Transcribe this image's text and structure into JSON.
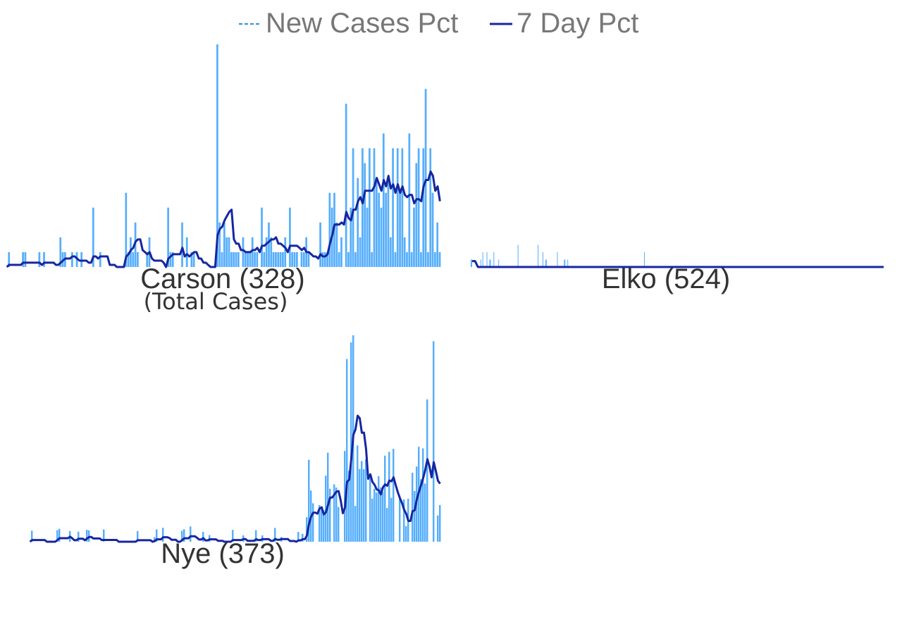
{
  "legend": {
    "new_cases_label": "New Cases Pct",
    "seven_day_label": "7 Day Pct"
  },
  "colors": {
    "bar": "#56aefc",
    "line": "#1626a0",
    "legend_dash": "#2f8fe0",
    "label": "#333333",
    "legend_text": "#777777"
  },
  "chart_data": [
    {
      "type": "bar",
      "label": "Carson (328)",
      "sublabel": "(Total Cases)",
      "ylim": [
        0,
        15
      ],
      "bar_values": [
        0,
        1,
        0,
        0,
        0,
        0,
        0,
        1,
        1,
        0,
        0,
        0,
        0,
        0,
        1,
        0,
        1,
        0,
        0,
        0,
        0,
        0,
        0,
        2,
        1,
        1,
        0,
        0,
        1,
        0,
        1,
        0,
        1,
        0,
        0,
        0,
        0,
        4,
        0,
        0,
        1,
        0,
        0,
        0,
        0,
        0,
        0,
        0,
        0,
        0,
        0,
        5,
        1,
        2,
        1,
        3,
        1,
        0,
        0,
        0,
        1,
        2,
        0,
        0,
        0,
        0,
        0,
        0,
        0,
        4,
        1,
        1,
        0,
        0,
        0,
        3,
        0,
        2,
        0,
        1,
        1,
        0,
        0,
        0,
        0,
        0,
        0,
        0,
        0,
        0,
        15,
        3,
        1,
        3,
        2,
        2,
        1,
        1,
        1,
        1,
        0,
        2,
        1,
        1,
        1,
        2,
        1,
        1,
        0,
        4,
        1,
        2,
        3,
        2,
        1,
        1,
        1,
        1,
        1,
        2,
        0,
        4,
        1,
        1,
        1,
        0,
        1,
        1,
        2,
        1,
        0,
        0,
        0,
        0,
        3,
        1,
        1,
        1,
        5,
        4,
        5,
        3,
        1,
        2,
        0,
        11,
        1,
        4,
        8,
        1,
        6,
        2,
        8,
        7,
        4,
        8,
        1,
        8,
        6,
        5,
        4,
        9,
        5,
        6,
        2,
        8,
        1,
        8,
        5,
        8,
        2,
        1,
        9,
        1,
        4,
        7,
        8,
        1,
        8,
        12,
        1,
        8,
        5,
        1,
        3,
        1
      ],
      "avg_values": [
        1,
        0,
        0,
        0,
        0,
        0,
        0,
        0,
        0,
        0,
        0,
        0,
        0,
        0,
        0,
        0,
        0,
        0,
        0,
        0,
        0,
        0,
        0,
        0,
        0,
        0,
        0,
        0,
        0,
        0,
        0,
        0,
        0,
        0,
        0,
        0,
        1,
        1,
        0,
        0,
        1,
        0,
        0,
        0,
        1,
        1,
        1,
        1,
        1,
        1,
        1,
        1,
        0,
        0,
        0,
        0,
        0,
        0,
        0,
        0,
        0,
        0,
        1,
        1,
        1,
        1,
        2,
        2,
        1,
        2,
        2,
        1,
        1,
        1,
        1,
        1,
        1,
        1,
        0,
        0,
        0,
        0,
        0,
        0,
        1,
        1,
        0,
        0,
        0,
        1,
        1,
        1,
        1,
        1,
        1,
        1,
        1,
        1,
        2,
        2,
        2,
        2,
        1,
        1,
        1,
        1,
        1,
        1,
        1,
        1,
        1,
        1,
        1,
        1,
        1,
        1,
        1,
        1,
        1,
        2,
        1,
        1,
        1,
        1,
        2,
        2,
        2,
        1,
        1,
        1,
        1,
        1,
        1,
        1,
        1,
        1,
        1,
        1,
        1,
        1,
        1,
        1,
        1,
        1,
        1,
        1,
        2,
        2,
        2,
        3,
        3,
        3,
        2,
        3,
        3,
        3,
        3,
        4,
        4,
        4,
        5,
        4,
        4,
        5,
        4,
        5,
        6,
        6,
        5,
        5,
        5,
        5,
        5,
        4,
        4,
        5,
        4,
        4,
        4,
        4,
        4,
        4,
        4,
        5,
        5,
        5,
        5,
        5,
        5,
        5,
        5,
        5,
        5,
        5,
        3,
        3
      ]
    },
    {
      "type": "bar",
      "label": "Elko (524)",
      "ylim": [
        0,
        15
      ],
      "bar_values": [
        0.5,
        0.5,
        0,
        0,
        0,
        0,
        0,
        0,
        0,
        0,
        0,
        0,
        0,
        0,
        0.5,
        0,
        0,
        1,
        0,
        0,
        0,
        0,
        0,
        1,
        0,
        0,
        0,
        0.5,
        0.5,
        0,
        0,
        0,
        0,
        1,
        0,
        0,
        0,
        0,
        0,
        0,
        0.5,
        0,
        0,
        0,
        0,
        0,
        0,
        0,
        0,
        0,
        0,
        0,
        0,
        0,
        0,
        0,
        0,
        0,
        0,
        0,
        0,
        0,
        0,
        0,
        0,
        0,
        0,
        0,
        1.5,
        0,
        0,
        0,
        0,
        0,
        0,
        0,
        0,
        0,
        0,
        0,
        0,
        0,
        0,
        0,
        0,
        0,
        0,
        0,
        0,
        0,
        0,
        0,
        0,
        0,
        0,
        0,
        0,
        1.5,
        0,
        0,
        0,
        0,
        0,
        0,
        1,
        0,
        0,
        0,
        0.5,
        0.5,
        0,
        0,
        0,
        0,
        0,
        0,
        0,
        0,
        0,
        0,
        0,
        0,
        0,
        0,
        0,
        1,
        0,
        0,
        0,
        0,
        0,
        0,
        0,
        0,
        0,
        0.5,
        0.5,
        0,
        0,
        0,
        0.5,
        0,
        0,
        0,
        0,
        0,
        0,
        0,
        0,
        0,
        0,
        0,
        0,
        0,
        0,
        0,
        0,
        0,
        0,
        0,
        0,
        0,
        0,
        0,
        0,
        0,
        0,
        0,
        0,
        0,
        0,
        0,
        0,
        0,
        0,
        0,
        0,
        0,
        0,
        0,
        0,
        0,
        0,
        0,
        0,
        0,
        0,
        0,
        0,
        0,
        0,
        0,
        0,
        0,
        0,
        0,
        0,
        0,
        0,
        0,
        0,
        0,
        0,
        0,
        0,
        0,
        0,
        0,
        0,
        0,
        0,
        0,
        0,
        0,
        0,
        0,
        0,
        0,
        0,
        0,
        0,
        0,
        0,
        0,
        0,
        0,
        0,
        0,
        0,
        0,
        0,
        0,
        0,
        0,
        0,
        0,
        0,
        0,
        0,
        0,
        0,
        0,
        0,
        0,
        0,
        0,
        0,
        0,
        0,
        0,
        0,
        1,
        0,
        0,
        0,
        0,
        0,
        0,
        0,
        0,
        0,
        0,
        0,
        0,
        0,
        0,
        0,
        0,
        0,
        0,
        0,
        0,
        0,
        0,
        0,
        0,
        0,
        0,
        0,
        0,
        0,
        0,
        0,
        0,
        0,
        0,
        0,
        0,
        0,
        0,
        0,
        0,
        0,
        0,
        0,
        0,
        0,
        0,
        0,
        0,
        0,
        0,
        0,
        0,
        0,
        0,
        0,
        0,
        0,
        0,
        0,
        0,
        0,
        0,
        0,
        0,
        0,
        0,
        0,
        0,
        0,
        0,
        0,
        0,
        0,
        0,
        0,
        0,
        0,
        0,
        0,
        0,
        0,
        0,
        0,
        0,
        0,
        0,
        0,
        0,
        0,
        0,
        0,
        0,
        0,
        0,
        0,
        0,
        0,
        0,
        0,
        0,
        0,
        0,
        0,
        0,
        0,
        0,
        0,
        0,
        0,
        0,
        0,
        0,
        0,
        0,
        0,
        0,
        0,
        0,
        0,
        0,
        0,
        0,
        0,
        0,
        0,
        0,
        0,
        0,
        0,
        0,
        0,
        0,
        0,
        0,
        0,
        0,
        0,
        0,
        0,
        0,
        0,
        0,
        0,
        0,
        0,
        0,
        0,
        0,
        0,
        0,
        0,
        0,
        0,
        0,
        0,
        0,
        0,
        0,
        0,
        0,
        0,
        0,
        0,
        0,
        0,
        0,
        0,
        0,
        0,
        0,
        0,
        0,
        0,
        0,
        0,
        0,
        0,
        0,
        0,
        0,
        0,
        0,
        0,
        0,
        0,
        0,
        0,
        0,
        0,
        0,
        0,
        0,
        0,
        0,
        0,
        0,
        0,
        0,
        0,
        0,
        0,
        0,
        0,
        0,
        0,
        0,
        0,
        0,
        0,
        0,
        0,
        0,
        0,
        0,
        0,
        0,
        0,
        0,
        0,
        0,
        0,
        0,
        0,
        0,
        0,
        0,
        0,
        0,
        0,
        0,
        0,
        0,
        0,
        0,
        0,
        0,
        0,
        0,
        0,
        0,
        0,
        0,
        0,
        0,
        0,
        0,
        0,
        0,
        0,
        0,
        0,
        0,
        0,
        0,
        0,
        0,
        0,
        0,
        0,
        0,
        0,
        0,
        0,
        0,
        0,
        0,
        0,
        0,
        0,
        0,
        0,
        0,
        0,
        0,
        0,
        0,
        0,
        0,
        0,
        0,
        0,
        0,
        0,
        0,
        0,
        0,
        0,
        0,
        0,
        0,
        0,
        0,
        0,
        0,
        0,
        0,
        0,
        0,
        0,
        0,
        0,
        0,
        0,
        0,
        0,
        0,
        0,
        0,
        0,
        0,
        0,
        0,
        0,
        0,
        0,
        0,
        0,
        0,
        0,
        0,
        0,
        0,
        0,
        0,
        0,
        0,
        0,
        0,
        0,
        0,
        0,
        0,
        0,
        0,
        0,
        0,
        0,
        0,
        0,
        0,
        0,
        0,
        0,
        0,
        0,
        0,
        0,
        0
      ],
      "bar_values_note_trim": 140,
      "avg_values": [
        0.4,
        0.4,
        0,
        0,
        0,
        0,
        0,
        0,
        0,
        0,
        0,
        0,
        0,
        0,
        0,
        0,
        0,
        0,
        0,
        0,
        0,
        0,
        0,
        0,
        0,
        0,
        0,
        0,
        0,
        0,
        0,
        0,
        0,
        0,
        0,
        0,
        0,
        0,
        0,
        0,
        0,
        0,
        0,
        0,
        0,
        0,
        0,
        0,
        0,
        0,
        0,
        0,
        0,
        0,
        0,
        0,
        0,
        0,
        0,
        0,
        0,
        0,
        0,
        0,
        0,
        0,
        0,
        0,
        0,
        0,
        0,
        0,
        0,
        0,
        0,
        0,
        0,
        0,
        0,
        0,
        0,
        0,
        0,
        0,
        0,
        0,
        0,
        0,
        0,
        0,
        0,
        0,
        0,
        0,
        0,
        0,
        0,
        0,
        0,
        0,
        0,
        0,
        0,
        0,
        0,
        0,
        0,
        0,
        0,
        0,
        0,
        0,
        0,
        0,
        0,
        0,
        0,
        0,
        0,
        0,
        0,
        0,
        0,
        0,
        0,
        0,
        0,
        0,
        0,
        0,
        0,
        0,
        0,
        0,
        0,
        0,
        0,
        0,
        0,
        0,
        0,
        0,
        0,
        0
      ]
    },
    {
      "type": "bar",
      "label": "Nye (373)",
      "ylim": [
        0,
        15
      ],
      "bar_values": [],
      "avg_values": []
    }
  ]
}
